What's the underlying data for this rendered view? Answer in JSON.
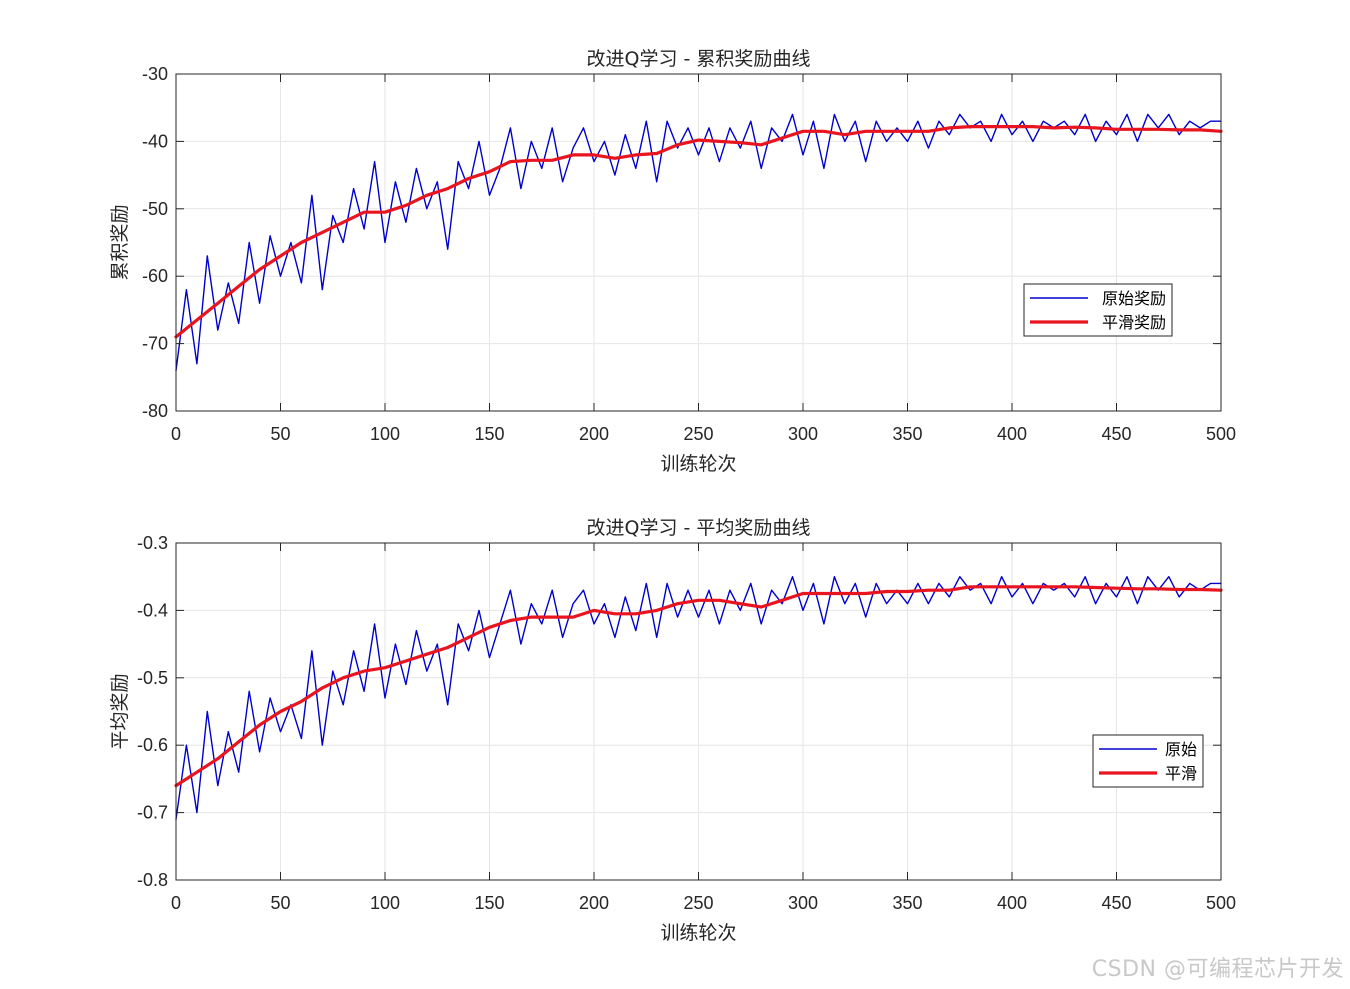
{
  "watermark": "CSDN @可编程芯片开发",
  "colors": {
    "raw": "#0000cd",
    "smooth": "#e8141e",
    "grid": "#e6e6e6",
    "axis": "#262626"
  },
  "chart_data": [
    {
      "type": "line",
      "title": "改进Q学习 - 累积奖励曲线",
      "xlabel": "训练轮次",
      "ylabel": "累积奖励",
      "xlim": [
        0,
        500
      ],
      "ylim": [
        -80,
        -30
      ],
      "xticks": [
        0,
        50,
        100,
        150,
        200,
        250,
        300,
        350,
        400,
        450,
        500
      ],
      "yticks": [
        -30,
        -40,
        -50,
        -60,
        -70,
        -80
      ],
      "grid": true,
      "legend_position": "right",
      "series": [
        {
          "name": "原始奖励",
          "x": [
            0,
            5,
            10,
            15,
            20,
            25,
            30,
            35,
            40,
            45,
            50,
            55,
            60,
            65,
            70,
            75,
            80,
            85,
            90,
            95,
            100,
            105,
            110,
            115,
            120,
            125,
            130,
            135,
            140,
            145,
            150,
            155,
            160,
            165,
            170,
            175,
            180,
            185,
            190,
            195,
            200,
            205,
            210,
            215,
            220,
            225,
            230,
            235,
            240,
            245,
            250,
            255,
            260,
            265,
            270,
            275,
            280,
            285,
            290,
            295,
            300,
            305,
            310,
            315,
            320,
            325,
            330,
            335,
            340,
            345,
            350,
            355,
            360,
            365,
            370,
            375,
            380,
            385,
            390,
            395,
            400,
            405,
            410,
            415,
            420,
            425,
            430,
            435,
            440,
            445,
            450,
            455,
            460,
            465,
            470,
            475,
            480,
            485,
            490,
            495,
            500
          ],
          "values": [
            -74,
            -62,
            -73,
            -57,
            -68,
            -61,
            -67,
            -55,
            -64,
            -54,
            -60,
            -55,
            -61,
            -48,
            -62,
            -51,
            -55,
            -47,
            -53,
            -43,
            -55,
            -46,
            -52,
            -44,
            -50,
            -46,
            -56,
            -43,
            -47,
            -40,
            -48,
            -44,
            -38,
            -47,
            -40,
            -44,
            -38,
            -46,
            -41,
            -38,
            -43,
            -40,
            -45,
            -39,
            -44,
            -37,
            -46,
            -37,
            -41,
            -38,
            -42,
            -38,
            -43,
            -38,
            -41,
            -37,
            -44,
            -38,
            -40,
            -36,
            -42,
            -37,
            -44,
            -36,
            -40,
            -37,
            -43,
            -37,
            -40,
            -38,
            -40,
            -37,
            -41,
            -37,
            -39,
            -36,
            -38,
            -37,
            -40,
            -36,
            -39,
            -37,
            -40,
            -37,
            -38,
            -37,
            -39,
            -36,
            -40,
            -37,
            -39,
            -36,
            -40,
            -36,
            -38,
            -36,
            -39,
            -37,
            -38,
            -37,
            -37
          ]
        },
        {
          "name": "平滑奖励",
          "x": [
            0,
            10,
            20,
            30,
            40,
            50,
            60,
            70,
            80,
            90,
            100,
            110,
            120,
            130,
            140,
            150,
            160,
            170,
            180,
            190,
            200,
            210,
            220,
            230,
            240,
            250,
            260,
            270,
            280,
            290,
            300,
            310,
            320,
            330,
            340,
            350,
            360,
            370,
            380,
            390,
            400,
            410,
            420,
            430,
            440,
            450,
            460,
            470,
            480,
            490,
            500
          ],
          "values": [
            -69,
            -66.5,
            -64,
            -61.5,
            -59,
            -57,
            -55,
            -53.5,
            -52,
            -50.5,
            -50.5,
            -49.5,
            -48,
            -47,
            -45.5,
            -44.5,
            -43,
            -42.8,
            -42.8,
            -42,
            -42,
            -42.5,
            -42,
            -41.8,
            -40.5,
            -39.8,
            -40,
            -40.2,
            -40.5,
            -39.5,
            -38.5,
            -38.5,
            -39,
            -38.5,
            -38.5,
            -38.5,
            -38.5,
            -38,
            -37.8,
            -37.8,
            -37.8,
            -37.8,
            -38,
            -37.9,
            -38,
            -38.2,
            -38.2,
            -38.2,
            -38.3,
            -38.3,
            -38.5
          ]
        }
      ]
    },
    {
      "type": "line",
      "title": "改进Q学习 - 平均奖励曲线",
      "xlabel": "训练轮次",
      "ylabel": "平均奖励",
      "xlim": [
        0,
        500
      ],
      "ylim": [
        -0.8,
        -0.3
      ],
      "xticks": [
        0,
        50,
        100,
        150,
        200,
        250,
        300,
        350,
        400,
        450,
        500
      ],
      "yticks": [
        -0.3,
        -0.4,
        -0.5,
        -0.6,
        -0.7,
        -0.8
      ],
      "grid": true,
      "legend_position": "right",
      "series": [
        {
          "name": "原始",
          "x": [
            0,
            5,
            10,
            15,
            20,
            25,
            30,
            35,
            40,
            45,
            50,
            55,
            60,
            65,
            70,
            75,
            80,
            85,
            90,
            95,
            100,
            105,
            110,
            115,
            120,
            125,
            130,
            135,
            140,
            145,
            150,
            155,
            160,
            165,
            170,
            175,
            180,
            185,
            190,
            195,
            200,
            205,
            210,
            215,
            220,
            225,
            230,
            235,
            240,
            245,
            250,
            255,
            260,
            265,
            270,
            275,
            280,
            285,
            290,
            295,
            300,
            305,
            310,
            315,
            320,
            325,
            330,
            335,
            340,
            345,
            350,
            355,
            360,
            365,
            370,
            375,
            380,
            385,
            390,
            395,
            400,
            405,
            410,
            415,
            420,
            425,
            430,
            435,
            440,
            445,
            450,
            455,
            460,
            465,
            470,
            475,
            480,
            485,
            490,
            495,
            500
          ],
          "values": [
            -0.71,
            -0.6,
            -0.7,
            -0.55,
            -0.66,
            -0.58,
            -0.64,
            -0.52,
            -0.61,
            -0.53,
            -0.58,
            -0.54,
            -0.59,
            -0.46,
            -0.6,
            -0.49,
            -0.54,
            -0.46,
            -0.52,
            -0.42,
            -0.53,
            -0.45,
            -0.51,
            -0.43,
            -0.49,
            -0.45,
            -0.54,
            -0.42,
            -0.46,
            -0.4,
            -0.47,
            -0.42,
            -0.37,
            -0.45,
            -0.39,
            -0.42,
            -0.37,
            -0.44,
            -0.39,
            -0.37,
            -0.42,
            -0.39,
            -0.44,
            -0.38,
            -0.43,
            -0.36,
            -0.44,
            -0.36,
            -0.41,
            -0.37,
            -0.41,
            -0.37,
            -0.42,
            -0.37,
            -0.4,
            -0.36,
            -0.42,
            -0.37,
            -0.39,
            -0.35,
            -0.4,
            -0.36,
            -0.42,
            -0.35,
            -0.39,
            -0.36,
            -0.41,
            -0.36,
            -0.39,
            -0.37,
            -0.39,
            -0.36,
            -0.39,
            -0.36,
            -0.38,
            -0.35,
            -0.37,
            -0.36,
            -0.39,
            -0.35,
            -0.38,
            -0.36,
            -0.39,
            -0.36,
            -0.37,
            -0.36,
            -0.38,
            -0.35,
            -0.39,
            -0.36,
            -0.38,
            -0.35,
            -0.39,
            -0.35,
            -0.37,
            -0.35,
            -0.38,
            -0.36,
            -0.37,
            -0.36,
            -0.36
          ]
        },
        {
          "name": "平滑",
          "x": [
            0,
            10,
            20,
            30,
            40,
            50,
            60,
            70,
            80,
            90,
            100,
            110,
            120,
            130,
            140,
            150,
            160,
            170,
            180,
            190,
            200,
            210,
            220,
            230,
            240,
            250,
            260,
            270,
            280,
            290,
            300,
            310,
            320,
            330,
            340,
            350,
            360,
            370,
            380,
            390,
            400,
            410,
            420,
            430,
            440,
            450,
            460,
            470,
            480,
            490,
            500
          ],
          "values": [
            -0.66,
            -0.64,
            -0.62,
            -0.595,
            -0.57,
            -0.55,
            -0.535,
            -0.515,
            -0.5,
            -0.49,
            -0.485,
            -0.475,
            -0.465,
            -0.455,
            -0.44,
            -0.425,
            -0.415,
            -0.41,
            -0.41,
            -0.41,
            -0.4,
            -0.405,
            -0.405,
            -0.4,
            -0.39,
            -0.385,
            -0.385,
            -0.39,
            -0.395,
            -0.385,
            -0.375,
            -0.375,
            -0.375,
            -0.375,
            -0.372,
            -0.372,
            -0.37,
            -0.37,
            -0.365,
            -0.365,
            -0.365,
            -0.365,
            -0.365,
            -0.365,
            -0.366,
            -0.367,
            -0.368,
            -0.368,
            -0.369,
            -0.369,
            -0.37
          ]
        }
      ]
    }
  ]
}
